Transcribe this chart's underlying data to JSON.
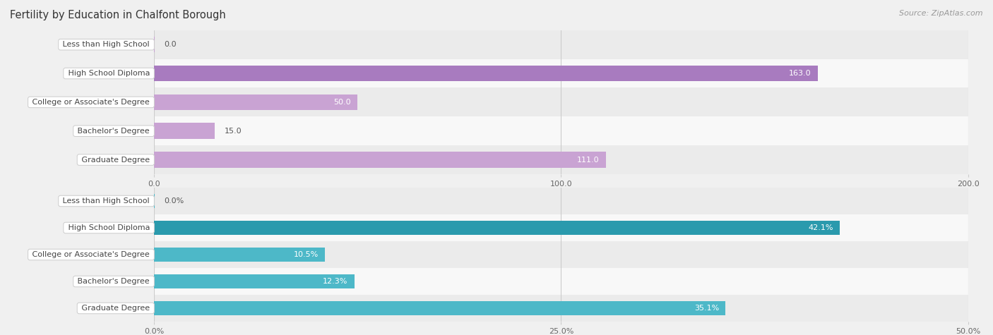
{
  "title": "Fertility by Education in Chalfont Borough",
  "source": "Source: ZipAtlas.com",
  "top_chart": {
    "categories": [
      "Less than High School",
      "High School Diploma",
      "College or Associate's Degree",
      "Bachelor's Degree",
      "Graduate Degree"
    ],
    "values": [
      0.0,
      163.0,
      50.0,
      15.0,
      111.0
    ],
    "bar_color": "#c9a3d3",
    "highlight_color": "#a87bbf",
    "highlight_index": 1,
    "xlim": [
      0,
      200
    ],
    "xticks": [
      0.0,
      100.0,
      200.0
    ],
    "xtick_labels": [
      "0.0",
      "100.0",
      "200.0"
    ],
    "value_labels": [
      "0.0",
      "163.0",
      "50.0",
      "15.0",
      "111.0"
    ]
  },
  "bottom_chart": {
    "categories": [
      "Less than High School",
      "High School Diploma",
      "College or Associate's Degree",
      "Bachelor's Degree",
      "Graduate Degree"
    ],
    "values": [
      0.0,
      42.1,
      10.5,
      12.3,
      35.1
    ],
    "bar_color": "#4db8c8",
    "highlight_color": "#2a9aad",
    "highlight_index": 1,
    "xlim": [
      0,
      50
    ],
    "xticks": [
      0.0,
      25.0,
      50.0
    ],
    "xtick_labels": [
      "0.0%",
      "25.0%",
      "50.0%"
    ],
    "value_labels": [
      "0.0%",
      "42.1%",
      "10.5%",
      "12.3%",
      "35.1%"
    ]
  },
  "label_font_color": "#444444",
  "title_color": "#333333",
  "source_color": "#999999",
  "bg_color": "#f0f0f0",
  "row_bg_colors": [
    "#ebebeb",
    "#f8f8f8"
  ],
  "bar_height": 0.55,
  "title_fontsize": 10.5,
  "label_fontsize": 8,
  "value_fontsize": 8,
  "tick_fontsize": 8
}
